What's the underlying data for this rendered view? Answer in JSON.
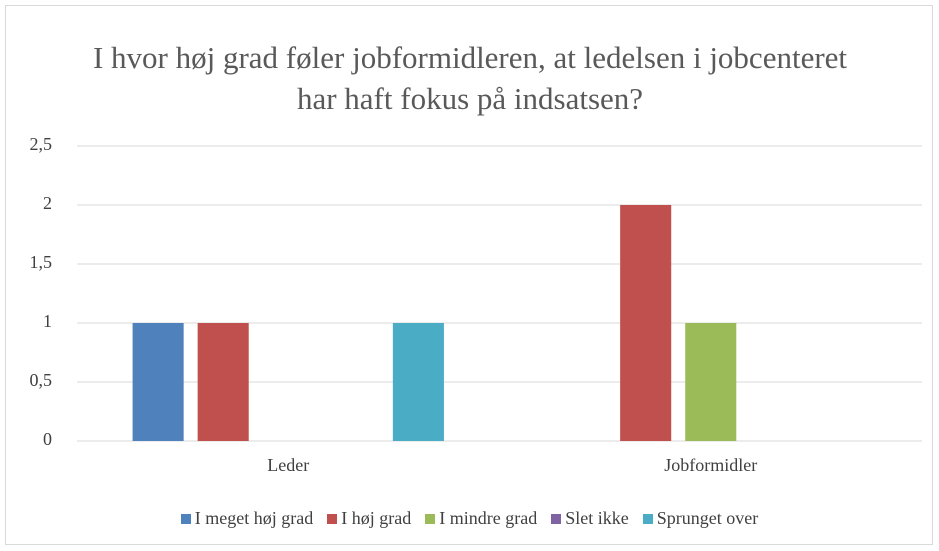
{
  "chart_data": {
    "type": "bar",
    "title": "I hvor høj grad føler jobformidleren, at ledelsen i jobcenteret har haft fokus på indsatsen?",
    "categories": [
      "Leder",
      "Jobformidler"
    ],
    "series": [
      {
        "name": "I meget høj grad",
        "color": "#4f81bd",
        "values": [
          1,
          0
        ]
      },
      {
        "name": "I høj grad",
        "color": "#c0504d",
        "values": [
          1,
          2
        ]
      },
      {
        "name": "I mindre grad",
        "color": "#9bbb59",
        "values": [
          0,
          1
        ]
      },
      {
        "name": "Slet ikke",
        "color": "#8064a2",
        "values": [
          0,
          0
        ]
      },
      {
        "name": "Sprunget over",
        "color": "#4bacc6",
        "values": [
          1,
          0
        ]
      }
    ],
    "ylim": [
      0,
      2.5
    ],
    "yticks": [
      0,
      {
        "value": 0.5,
        "label": "0,5"
      },
      1,
      {
        "value": 1.5,
        "label": "1,5"
      },
      2,
      {
        "value": 2.5,
        "label": "2,5"
      }
    ],
    "grid": true,
    "legend": "bottom"
  }
}
